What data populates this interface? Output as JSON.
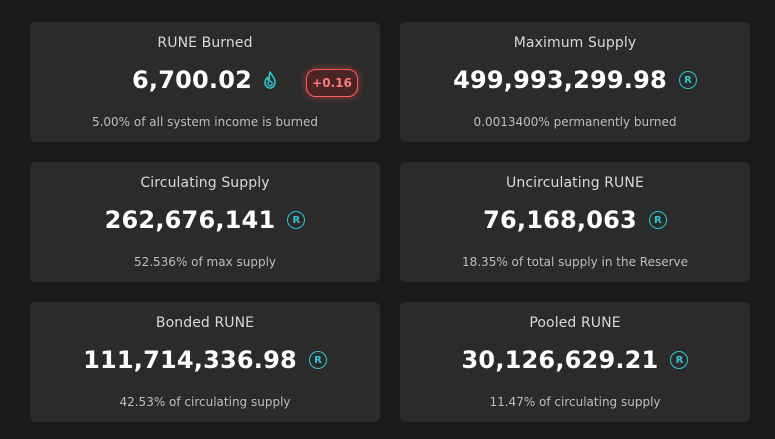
{
  "colors": {
    "background": "#1a1a1a",
    "card": "#2b2b2b",
    "accent_teal": "#2ec5cf",
    "badge_red": "#ff5a5a"
  },
  "cards": [
    {
      "title": "RUNE Burned",
      "value": "6,700.02",
      "icon": "fire-icon",
      "badge": "+0.16",
      "subtitle": "5.00% of all system income is burned"
    },
    {
      "title": "Maximum Supply",
      "value": "499,993,299.98",
      "icon": "rune-icon",
      "icon_glyph": "R",
      "subtitle": "0.0013400% permanently burned"
    },
    {
      "title": "Circulating Supply",
      "value": "262,676,141",
      "icon": "rune-icon",
      "icon_glyph": "R",
      "subtitle": "52.536% of max supply"
    },
    {
      "title": "Uncirculating RUNE",
      "value": "76,168,063",
      "icon": "rune-icon",
      "icon_glyph": "R",
      "subtitle": "18.35% of total supply in the Reserve"
    },
    {
      "title": "Bonded RUNE",
      "value": "111,714,336.98",
      "icon": "rune-icon",
      "icon_glyph": "R",
      "subtitle": "42.53% of circulating supply"
    },
    {
      "title": "Pooled RUNE",
      "value": "30,126,629.21",
      "icon": "rune-icon",
      "icon_glyph": "R",
      "subtitle": "11.47% of circulating supply"
    }
  ]
}
